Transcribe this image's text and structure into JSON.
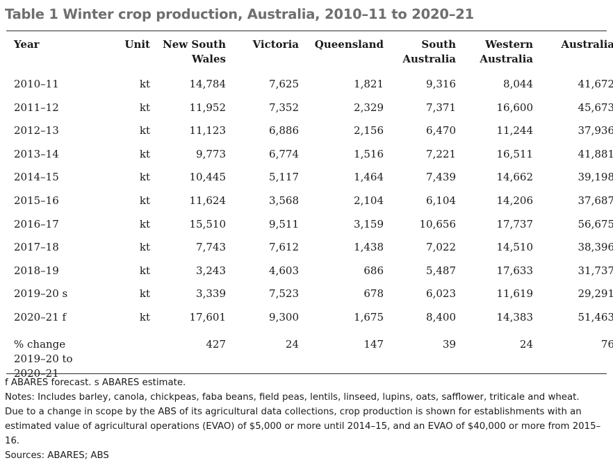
{
  "title": "Table 1 Winter crop production, Australia, 2010–11 to 2020–21",
  "table": {
    "columns": [
      {
        "key": "year",
        "label": "Year"
      },
      {
        "key": "unit",
        "label": "Unit"
      },
      {
        "key": "nsw",
        "label_line1": "New South",
        "label_line2": "Wales"
      },
      {
        "key": "vic",
        "label": "Victoria"
      },
      {
        "key": "qld",
        "label": "Queensland"
      },
      {
        "key": "sa",
        "label_line1": "South",
        "label_line2": "Australia"
      },
      {
        "key": "wa",
        "label_line1": "Western",
        "label_line2": "Australia"
      },
      {
        "key": "aus",
        "label": "Australia"
      }
    ],
    "rows": [
      {
        "year": "2010–11",
        "unit": "kt",
        "nsw": "14,784",
        "vic": "7,625",
        "qld": "1,821",
        "sa": "9,316",
        "wa": "8,044",
        "aus": "41,672"
      },
      {
        "year": "2011–12",
        "unit": "kt",
        "nsw": "11,952",
        "vic": "7,352",
        "qld": "2,329",
        "sa": "7,371",
        "wa": "16,600",
        "aus": "45,673"
      },
      {
        "year": "2012–13",
        "unit": "kt",
        "nsw": "11,123",
        "vic": "6,886",
        "qld": "2,156",
        "sa": "6,470",
        "wa": "11,244",
        "aus": "37,936"
      },
      {
        "year": "2013–14",
        "unit": "kt",
        "nsw": "9,773",
        "vic": "6,774",
        "qld": "1,516",
        "sa": "7,221",
        "wa": "16,511",
        "aus": "41,881"
      },
      {
        "year": "2014–15",
        "unit": "kt",
        "nsw": "10,445",
        "vic": "5,117",
        "qld": "1,464",
        "sa": "7,439",
        "wa": "14,662",
        "aus": "39,198"
      },
      {
        "year": "2015–16",
        "unit": "kt",
        "nsw": "11,624",
        "vic": "3,568",
        "qld": "2,104",
        "sa": "6,104",
        "wa": "14,206",
        "aus": "37,687"
      },
      {
        "year": "2016–17",
        "unit": "kt",
        "nsw": "15,510",
        "vic": "9,511",
        "qld": "3,159",
        "sa": "10,656",
        "wa": "17,737",
        "aus": "56,675"
      },
      {
        "year": "2017–18",
        "unit": "kt",
        "nsw": "7,743",
        "vic": "7,612",
        "qld": "1,438",
        "sa": "7,022",
        "wa": "14,510",
        "aus": "38,396"
      },
      {
        "year": "2018–19",
        "unit": "kt",
        "nsw": "3,243",
        "vic": "4,603",
        "qld": "686",
        "sa": "5,487",
        "wa": "17,633",
        "aus": "31,737"
      },
      {
        "year": "2019–20 s",
        "unit": "kt",
        "nsw": "3,339",
        "vic": "7,523",
        "qld": "678",
        "sa": "6,023",
        "wa": "11,619",
        "aus": "29,291"
      },
      {
        "year": "2020–21 f",
        "unit": "kt",
        "nsw": "17,601",
        "vic": "9,300",
        "qld": "1,675",
        "sa": "8,400",
        "wa": "14,383",
        "aus": "51,463"
      }
    ],
    "change_row": {
      "label_line1": "% change",
      "label_line2": "2019–20 to",
      "label_line3": "2020–21",
      "unit": "",
      "nsw": "427",
      "vic": "24",
      "qld": "147",
      "sa": "39",
      "wa": "24",
      "aus": "76"
    }
  },
  "notes": {
    "footnote": "f ABARES forecast. s ABARES estimate.",
    "includes": "Notes: Includes barley, canola, chickpeas, faba beans, field peas, lentils, linseed, lupins, oats, safflower, triticale and wheat.",
    "scope": "Due to a change in scope by the ABS of its agricultural data collections, crop production is shown for establishments with an estimated value of agricultural operations (EVAO) of $5,000 or more until 2014–15, and an EVAO of $40,000 or more from 2015–16.",
    "sources": "Sources: ABARES; ABS"
  }
}
